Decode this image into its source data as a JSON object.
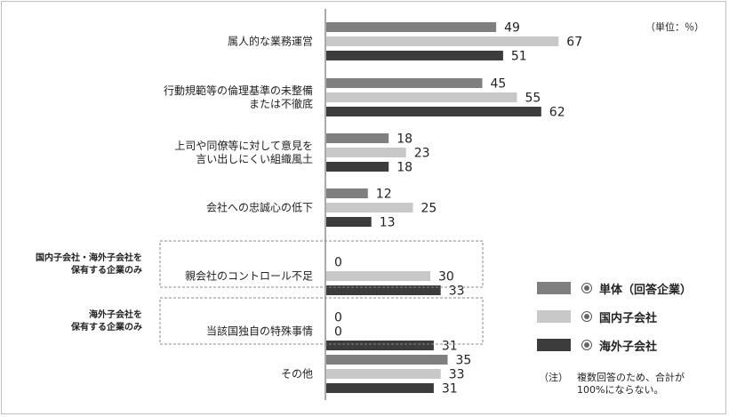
{
  "unit_label": "（単位：％）",
  "colors": {
    "single": "#7f7f7f",
    "domestic": "#c8c8c8",
    "overseas": "#3c3c3c",
    "axis": "#aaaaaa",
    "dash": "#888888"
  },
  "legend": [
    {
      "label": "単体（回答企業）",
      "icon": "circle-dot-icon"
    },
    {
      "label": "国内子会社",
      "icon": "circle-dot-icon"
    },
    {
      "label": "海外子会社",
      "icon": "globe-icon"
    }
  ],
  "note": {
    "label": "（注）",
    "lines": [
      "複数回答のため、合計が",
      "100%にならない。"
    ]
  },
  "groups": [
    {
      "lines": [
        "国内子会社・海外子会社を",
        "保有する企業のみ"
      ]
    },
    {
      "lines": [
        "海外子会社を",
        "保有する企業のみ"
      ]
    }
  ],
  "chart_data": {
    "type": "bar",
    "orientation": "horizontal",
    "unit": "%",
    "xlim": [
      0,
      70
    ],
    "grid": false,
    "legend_position": "bottom-right",
    "categories": [
      [
        "属人的な業務運営"
      ],
      [
        "行動規範等の倫理基準の未整備",
        "または不徹底"
      ],
      [
        "上司や同僚等に対して意見を",
        "言い出しにくい組織風土"
      ],
      [
        "会社への忠誠心の低下"
      ],
      [
        "親会社のコントロール不足"
      ],
      [
        "当該国独自の特殊事情"
      ],
      [
        "その他"
      ]
    ],
    "series": [
      {
        "name": "単体（回答企業）",
        "values": [
          49,
          45,
          18,
          12,
          0,
          0,
          35
        ]
      },
      {
        "name": "国内子会社",
        "values": [
          67,
          55,
          23,
          25,
          30,
          0,
          33
        ]
      },
      {
        "name": "海外子会社",
        "values": [
          51,
          62,
          18,
          13,
          33,
          31,
          31
        ]
      }
    ]
  }
}
